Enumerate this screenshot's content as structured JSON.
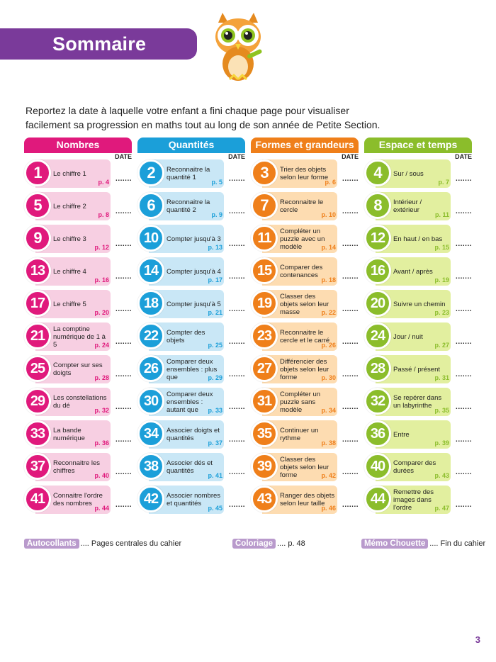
{
  "title": "Sommaire",
  "intro": "Reportez la date à laquelle votre enfant a fini chaque page pour visualiser facilement sa progression en maths tout au long de son année de Petite Section.",
  "date_label": "DATE",
  "date_placeholder": ".......",
  "colors": {
    "purple": "#7a3a9a",
    "pink": "#e0197c",
    "pink_light": "#f7cfe2",
    "blue": "#1b9fd9",
    "blue_light": "#c9e7f6",
    "orange": "#ef7f1a",
    "orange_light": "#fddcb1",
    "green": "#8bbd2b",
    "green_light": "#e2ef9f"
  },
  "columns": [
    {
      "header": "Nombres",
      "items": [
        {
          "num": "1",
          "label": "Le chiffre 1",
          "page": "p. 4"
        },
        {
          "num": "5",
          "label": "Le chiffre 2",
          "page": "p. 8"
        },
        {
          "num": "9",
          "label": "Le chiffre 3",
          "page": "p. 12"
        },
        {
          "num": "13",
          "label": "Le chiffre 4",
          "page": "p. 16"
        },
        {
          "num": "17",
          "label": "Le chiffre 5",
          "page": "p. 20"
        },
        {
          "num": "21",
          "label": "La comptine numérique de 1 à 5",
          "page": "p. 24"
        },
        {
          "num": "25",
          "label": "Compter sur ses doigts",
          "page": "p. 28"
        },
        {
          "num": "29",
          "label": "Les constellations du dé",
          "page": "p. 32"
        },
        {
          "num": "33",
          "label": "La bande numérique",
          "page": "p. 36"
        },
        {
          "num": "37",
          "label": "Reconnaitre les chiffres",
          "page": "p. 40"
        },
        {
          "num": "41",
          "label": "Connaitre l'ordre des nombres",
          "page": "p. 44"
        }
      ]
    },
    {
      "header": "Quantités",
      "items": [
        {
          "num": "2",
          "label": "Reconnaitre la quantité 1",
          "page": "p. 5"
        },
        {
          "num": "6",
          "label": "Reconnaitre la quantité 2",
          "page": "p. 9"
        },
        {
          "num": "10",
          "label": "Compter jusqu'à 3",
          "page": "p. 13"
        },
        {
          "num": "14",
          "label": "Compter jusqu'à 4",
          "page": "p. 17"
        },
        {
          "num": "18",
          "label": "Compter jusqu'à 5",
          "page": "p. 21"
        },
        {
          "num": "22",
          "label": "Compter des objets",
          "page": "p. 25"
        },
        {
          "num": "26",
          "label": "Comparer deux ensembles : plus que",
          "page": "p. 29"
        },
        {
          "num": "30",
          "label": "Comparer deux ensembles : autant que",
          "page": "p. 33"
        },
        {
          "num": "34",
          "label": "Associer doigts et quantités",
          "page": "p. 37"
        },
        {
          "num": "38",
          "label": "Associer dés et quantités",
          "page": "p. 41"
        },
        {
          "num": "42",
          "label": "Associer nombres et quantités",
          "page": "p. 45"
        }
      ]
    },
    {
      "header": "Formes et grandeurs",
      "items": [
        {
          "num": "3",
          "label": "Trier des objets selon leur forme",
          "page": "p. 6"
        },
        {
          "num": "7",
          "label": "Reconnaitre le cercle",
          "page": "p. 10"
        },
        {
          "num": "11",
          "label": "Compléter un puzzle avec un modèle",
          "page": "p. 14"
        },
        {
          "num": "15",
          "label": "Comparer des contenances",
          "page": "p. 18"
        },
        {
          "num": "19",
          "label": "Classer des objets selon leur masse",
          "page": "p. 22"
        },
        {
          "num": "23",
          "label": "Reconnaitre le cercle et le carré",
          "page": "p. 26"
        },
        {
          "num": "27",
          "label": "Différencier des objets selon leur forme",
          "page": "p. 30"
        },
        {
          "num": "31",
          "label": "Compléter un puzzle sans modèle",
          "page": "p. 34"
        },
        {
          "num": "35",
          "label": "Continuer un rythme",
          "page": "p. 38"
        },
        {
          "num": "39",
          "label": "Classer des objets selon leur forme",
          "page": "p. 42"
        },
        {
          "num": "43",
          "label": "Ranger des objets selon leur taille",
          "page": "p. 46"
        }
      ]
    },
    {
      "header": "Espace et temps",
      "items": [
        {
          "num": "4",
          "label": "Sur / sous",
          "page": "p. 7"
        },
        {
          "num": "8",
          "label": "Intérieur / extérieur",
          "page": "p. 11"
        },
        {
          "num": "12",
          "label": "En haut / en bas",
          "page": "p. 15"
        },
        {
          "num": "16",
          "label": "Avant / après",
          "page": "p. 19"
        },
        {
          "num": "20",
          "label": "Suivre un chemin",
          "page": "p. 23"
        },
        {
          "num": "24",
          "label": "Jour / nuit",
          "page": "p. 27"
        },
        {
          "num": "28",
          "label": "Passé / présent",
          "page": "p. 31"
        },
        {
          "num": "32",
          "label": "Se repérer dans un labyrinthe",
          "page": "p. 35"
        },
        {
          "num": "36",
          "label": "Entre",
          "page": "p. 39"
        },
        {
          "num": "40",
          "label": "Comparer des durées",
          "page": "p. 43"
        },
        {
          "num": "44",
          "label": "Remettre des images dans l'ordre",
          "page": "p. 47"
        }
      ]
    }
  ],
  "footer": {
    "autocollants": {
      "tag": "Autocollants",
      "text": ".... Pages centrales du cahier"
    },
    "coloriage": {
      "tag": "Coloriage",
      "text": ".... p. 48"
    },
    "memo": {
      "tag": "Mémo Chouette",
      "text": ".... Fin du cahier"
    }
  },
  "page_number": "3"
}
